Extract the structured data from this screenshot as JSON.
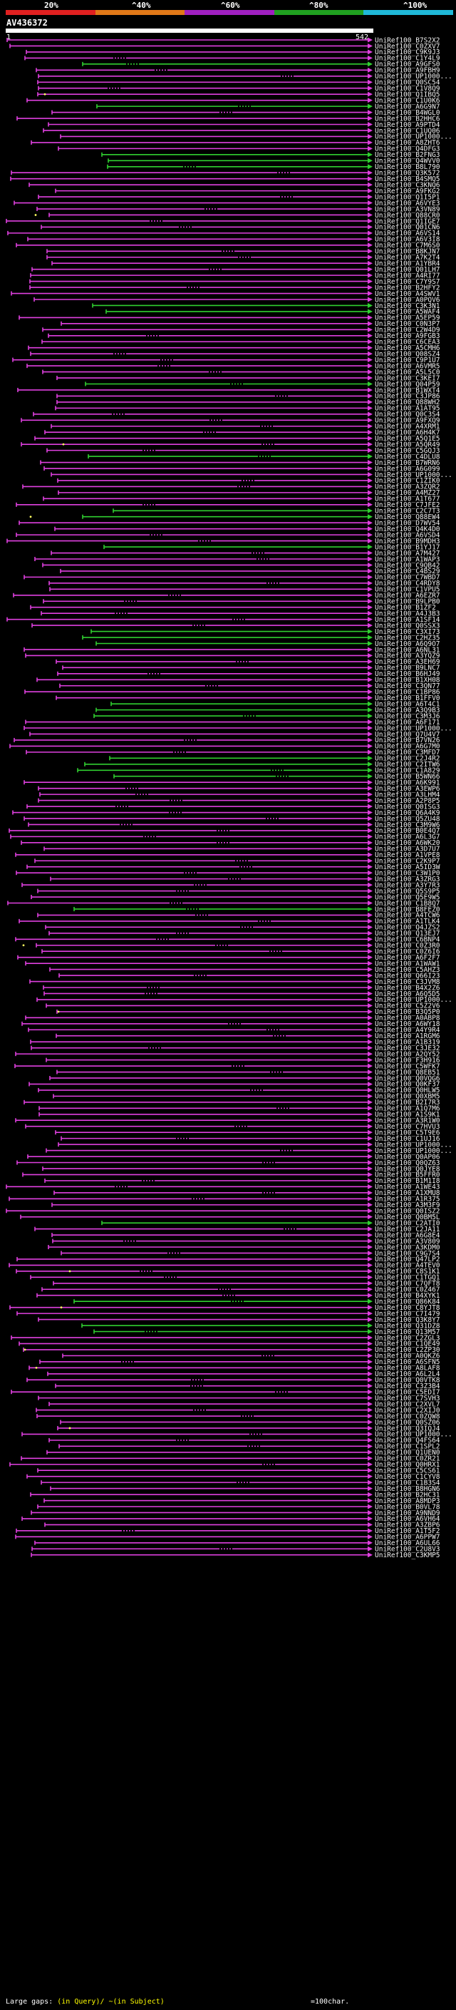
{
  "scale": {
    "ticks": [
      "20%",
      "^40%",
      "^60%",
      "^80%",
      "^100%"
    ],
    "colors": [
      "#e02020",
      "#e07818",
      "#a020c0",
      "#20a020",
      "#20b8d8"
    ]
  },
  "query": {
    "name": "AV436372",
    "start": "1",
    "end": "542"
  },
  "hit_colors": {
    "match": "#e040e0",
    "full": "#30d030",
    "gap": "#ffff60"
  },
  "hits": [
    "UniRef100_B7S2X2",
    "UniRef100_C0ZXV7",
    "UniRef100_C9K9J3",
    "UniRef100_C1Y4L9",
    "UniRef100_A9GFS0",
    "UniRef100_A9FBH9",
    "UniRef100_UP1000...",
    "UniRef100_Q0SC54",
    "UniRef100_C1V8Q9",
    "UniRef100_Q1IBQ5",
    "UniRef100_C1U0K6",
    "UniRef100_A6G9N7",
    "UniRef100_B4WGL0",
    "UniRef100_B2HHC6",
    "UniRef100_A9PTD4",
    "UniRef100_C1UQ06",
    "UniRef100_UP1000...",
    "UniRef100_A8ZHT6",
    "UniRef100_Q4DFG3",
    "UniRef100_B2FNG3",
    "UniRef100_Q4WVV0",
    "UniRef100_B8L790",
    "UniRef100_Q3K572",
    "UniRef100_B4SMQ5",
    "UniRef100_C3KNQ6",
    "UniRef100_A9FKG2",
    "UniRef100_Q1I5P1",
    "UniRef100_A6VYE3",
    "UniRef100_A3VN89",
    "UniRef100_Q88CR0",
    "UniRef100_Q1IGE7",
    "UniRef100_Q01CN6",
    "UniRef100_A6VS14",
    "UniRef100_A6V3I8",
    "UniRef100_C7M6S0",
    "UniRef100_B8KJN7",
    "UniRef100_A7K2T4",
    "UniRef100_A1YBR4",
    "UniRef100_Q01LH7",
    "UniRef100_A4RI77",
    "UniRef100_C7Y9S7",
    "UniRef100_B2HFY2",
    "UniRef100_A4SWV1",
    "UniRef100_A0PQV6",
    "UniRef100_C3K3N1",
    "UniRef100_A5WAF4",
    "UniRef100_A5EP59",
    "UniRef100_C0N3P7",
    "UniRef100_C2W4D9",
    "UniRef100_A9FGB3",
    "UniRef100_C6CEA3",
    "UniRef100_A5CMH6",
    "UniRef100_Q08SZ4",
    "UniRef100_C9P1U7",
    "UniRef100_A6VMR5",
    "UniRef100_A5L5C0",
    "UniRef100_C3KEI7",
    "UniRef100_Q04P59",
    "UniRef100_B1WXT4",
    "UniRef100_C3JP86",
    "UniRef100_Q88WH2",
    "UniRef100_A1AT95",
    "UniRef100_Q0C3S4",
    "UniRef100_A9FXQ9",
    "UniRef100_A4XRM1",
    "UniRef100_A6H4K7",
    "UniRef100_A5Q1E5",
    "UniRef100_A5QR49",
    "UniRef100_C5GQJ3",
    "UniRef100_C4DLU8",
    "UniRef100_B7WRN6",
    "UniRef100_A6G099",
    "UniRef100_UP1000...",
    "UniRef100_C1ZIK0",
    "UniRef100_A3ZQR2",
    "UniRef100_A4MZ27",
    "UniRef100_A1T677",
    "UniRef100_C7JFE2",
    "UniRef100_C2C7T3",
    "UniRef100_Q88EW4",
    "UniRef100_D7WV54",
    "UniRef100_Q4K4D0",
    "UniRef100_A6VSD4",
    "UniRef100_B9MDH3",
    "UniRef100_B1YJ17",
    "UniRef100_A7M427",
    "UniRef100_A1WAP3",
    "UniRef100_C9QB42",
    "UniRef100_C4BS29",
    "UniRef100_C7WBD7",
    "UniRef100_C4RDY8",
    "UniRef100_C1VPU5",
    "UniRef100_A6EZR7",
    "UniRef100_B9LPB0",
    "UniRef100_B1ZF2",
    "UniRef100_A4J3B3",
    "UniRef100_A1SF14",
    "UniRef100_Q0SSX3",
    "UniRef100_C3XI73",
    "UniRef100_C2HZ35",
    "UniRef100_A6Q9O7",
    "UniRef100_A6NL31",
    "UniRef100_A3YQZ9",
    "UniRef100_A3EH69",
    "UniRef100_B9LNC7",
    "UniRef100_B6HJ49",
    "UniRef100_B1XH08",
    "UniRef100_C3QN77",
    "UniRef100_C1BP86",
    "UniRef100_B1FFV0",
    "UniRef100_A6T4C1",
    "UniRef100_A3Q9B3",
    "UniRef100_C3M3J6",
    "UniRef100_A6F171",
    "UniRef100_UP1000...",
    "UniRef100_Q7U4V7",
    "UniRef100_B7VN26",
    "UniRef100_A6G7M0",
    "UniRef100_C3MFD7",
    "UniRef100_C2J4R2",
    "UniRef100_C2ITW6",
    "UniRef100_C1A829",
    "UniRef100_B5WN66",
    "UniRef100_A6K991",
    "UniRef100_A3EWP6",
    "UniRef100_A3LHM4",
    "UniRef100_A2P8P5",
    "UniRef100_Q0ISG3",
    "UniRef100_Q6A4K9",
    "UniRef100_Q5ZU48",
    "UniRef100_C3M9W6",
    "UniRef100_B0E4Q7",
    "UniRef100_A6L3G7",
    "UniRef100_A6WK20",
    "UniRef100_A3D7U7",
    "UniRef100_A1VPE8",
    "UniRef100_C2K9P7",
    "UniRef100_A5ID3W",
    "UniRef100_C3W1P0",
    "UniRef100_A3ZRG3",
    "UniRef100_A3Y7R3",
    "UniRef100_Q5S9P5",
    "UniRef100_Q5E9W5",
    "UniRef100_C1B8Q7",
    "UniRef100_B8FEZ0",
    "UniRef100_A4TCW6",
    "UniRef100_A1TLK4",
    "UniRef100_Q4JZS2",
    "UniRef100_Q13EJ7",
    "UniRef100_C6BNP4",
    "UniRef100_C0Z3R0",
    "UniRef100_C0Z6I6",
    "UniRef100_A6F2F7",
    "UniRef100_A1WAW1",
    "UniRef100_C5AHZ3",
    "UniRef100_Q66I23",
    "UniRef100_C3JVM8",
    "UniRef100_B4X2Z6",
    "UniRef100_A6Q5D5",
    "UniRef100_UP1000...",
    "UniRef100_C5Z2V6",
    "UniRef100_B3Q5P0",
    "UniRef100_A0ABP8",
    "UniRef100_A6WY18",
    "UniRef100_A4Y9R4",
    "UniRef100_A1RGM6",
    "UniRef100_A1B319",
    "UniRef100_C3JE32",
    "UniRef100_A2QY52",
    "UniRef100_F3H916",
    "UniRef100_C5WFK7",
    "UniRef100_Q8EB51",
    "UniRef100_Q0VQG6",
    "UniRef100_Q0KF37",
    "UniRef100_Q0HLW5",
    "UniRef100_Q0XBM5",
    "UniRef100_B2I7R3",
    "UniRef100_A1Q7M6",
    "UniRef100_A1S9K1",
    "UniRef100_A3R1W0",
    "UniRef100_C7HVU3",
    "UniRef100_C5T9E6",
    "UniRef100_C1UJ16",
    "UniRef100_UP1000...",
    "UniRef100_UP1000...",
    "UniRef100_Q0AP06",
    "UniRef100_Q0QZ63",
    "UniRef100_Q0JYE8",
    "UniRef100_B5FFR0",
    "UniRef100_B1M1I8",
    "UniRef100_A1WE43",
    "UniRef100_A1XMU8",
    "UniRef100_A1R375",
    "UniRef100_A3M3F9",
    "UniRef100_Q0ISZ2",
    "UniRef100_Q0BM5L",
    "UniRef100_C2ATI0",
    "UniRef100_C2JA11",
    "UniRef100_A6G8E4",
    "UniRef100_A3V809",
    "UniRef100_A3KDM0",
    "UniRef100_C9G7S4",
    "UniRef100_Q47LP2",
    "UniRef100_A4TEV0",
    "UniRef100_C8S1K1",
    "UniRef100_C1TGQ1",
    "UniRef100_C7QFT8",
    "UniRef100_C0Z467",
    "UniRef100_B4XYK1",
    "UniRef100_Q86K84",
    "UniRef100_C8YJT8",
    "UniRef100_C7I479",
    "UniRef100_Q3K8Y7",
    "UniRef100_Q31DZ8",
    "UniRef100_Q13M57",
    "UniRef100_C2ZGL3",
    "UniRef100_C1QE49",
    "UniRef100_C2ZP30",
    "UniRef100_A0QKZ6",
    "UniRef100_A6SFN5",
    "UniRef100_A8LAF8",
    "UniRef100_A6L2L4",
    "UniRef100_Q0VTK8",
    "UniRef100_C3Z3B4",
    "UniRef100_C5EDI7",
    "UniRef100_C7SVH3",
    "UniRef100_C2XVL7",
    "UniRef100_C2XIJ0",
    "UniRef100_C0ZQW8",
    "UniRef100_Q0SZ06",
    "UniRef100_Q3IQJ4",
    "UniRef100_UP1000...",
    "UniRef100_Q4FS64",
    "UniRef100_C1SPL2",
    "UniRef100_Q1UEN0",
    "UniRef100_C0ZR21",
    "UniRef100_Q0HRX1",
    "UniRef100_C5CS61",
    "UniRef100_C1CYV8",
    "UniRef100_C1B3S4",
    "UniRef100_B8HGN6",
    "UniRef100_B2HC31",
    "UniRef100_A8MDP3",
    "UniRef100_B0VL78",
    "UniRef100_A9NND9",
    "UniRef100_A6VH64",
    "UniRef100_A3ZBP6",
    "UniRef100_A1T5F2",
    "UniRef100_A6PPW7",
    "UniRef100_A6UL66",
    "UniRef100_C2U8V3",
    "UniRef100_C3KMP5"
  ],
  "footer": {
    "left": "Large gaps:",
    "arrows": "(in Query)/ ~(in Subject)",
    "scale_label": "=100char."
  }
}
